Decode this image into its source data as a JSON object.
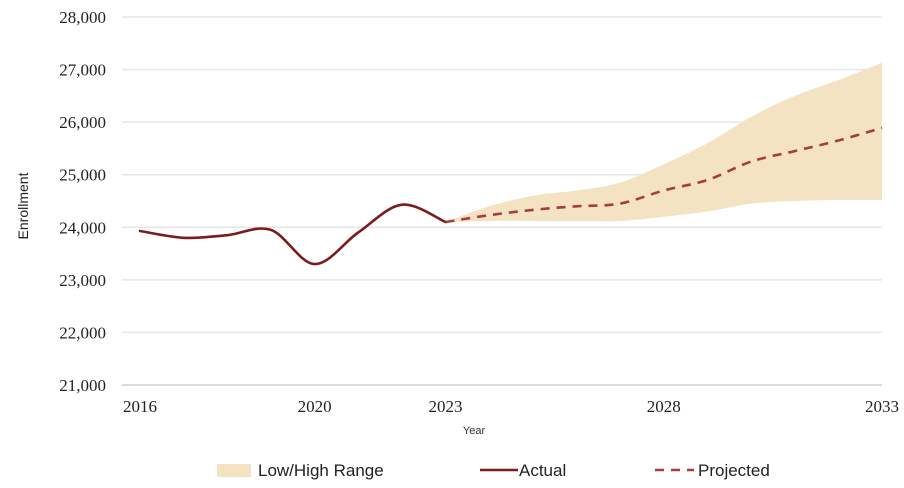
{
  "chart_data": {
    "type": "line",
    "title": "",
    "xlabel": "Year",
    "ylabel": "Enrollment",
    "xlim": [
      2016,
      2033
    ],
    "ylim": [
      21000,
      28000
    ],
    "x_ticks": [
      2016,
      2020,
      2023,
      2028,
      2033
    ],
    "x_tick_labels": [
      "2016",
      "2020",
      "2023",
      "2028",
      "2033"
    ],
    "y_ticks": [
      21000,
      22000,
      23000,
      24000,
      25000,
      26000,
      27000,
      28000
    ],
    "y_tick_labels": [
      "21,000",
      "22,000",
      "23,000",
      "24,000",
      "25,000",
      "26,000",
      "27,000",
      "28,000"
    ],
    "grid": "horizontal",
    "legend_position": "bottom",
    "series": [
      {
        "name": "Actual",
        "style": "solid",
        "color": "#7a1c1c",
        "x": [
          2016,
          2017,
          2018,
          2019,
          2020,
          2021,
          2022,
          2023
        ],
        "y": [
          23930,
          23800,
          23850,
          23950,
          23300,
          23900,
          24430,
          24100
        ]
      },
      {
        "name": "Projected",
        "style": "dashed",
        "color": "#a63d36",
        "x": [
          2023,
          2024,
          2025,
          2026,
          2027,
          2028,
          2029,
          2030,
          2031,
          2032,
          2033
        ],
        "y": [
          24100,
          24230,
          24330,
          24400,
          24450,
          24700,
          24900,
          25250,
          25450,
          25650,
          25890
        ]
      },
      {
        "name": "Low/High Range",
        "style": "band",
        "color": "#f3e3c3",
        "x": [
          2023,
          2024,
          2025,
          2026,
          2027,
          2028,
          2029,
          2030,
          2031,
          2032,
          2033
        ],
        "low": [
          24100,
          24120,
          24120,
          24120,
          24120,
          24200,
          24300,
          24450,
          24500,
          24520,
          24520
        ],
        "high": [
          24100,
          24400,
          24600,
          24700,
          24850,
          25200,
          25600,
          26100,
          26500,
          26800,
          27130
        ]
      }
    ],
    "legend": [
      {
        "label": "Low/High Range",
        "kind": "band"
      },
      {
        "label": "Actual",
        "kind": "solid"
      },
      {
        "label": "Projected",
        "kind": "dashed"
      }
    ]
  }
}
